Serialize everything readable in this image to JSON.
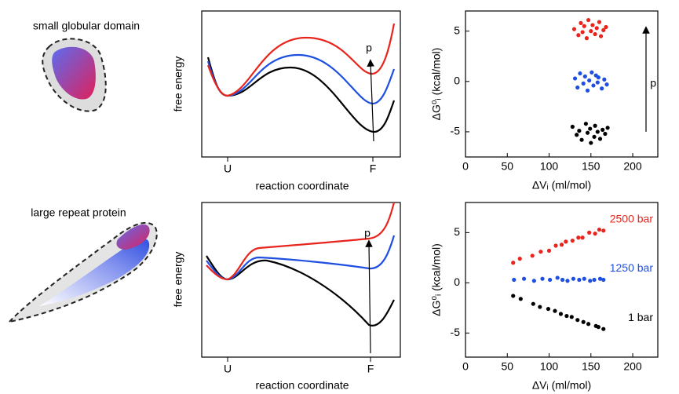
{
  "rows": [
    {
      "label": "small globular domain",
      "landscape": {
        "ylabel": "free energy",
        "xlabel": "reaction coordinate",
        "ticks": [
          "U",
          "F"
        ],
        "arrow": "p"
      }
    },
    {
      "label": "large repeat protein",
      "landscape": {
        "ylabel": "free energy",
        "xlabel": "reaction coordinate",
        "ticks": [
          "U",
          "F"
        ],
        "arrow": "p"
      }
    }
  ],
  "chart_data": [
    {
      "type": "scatter",
      "xlabel": "ΔVᵢ  (ml/mol)",
      "ylabel": "ΔG⁰ᵢ (kcal/mol)",
      "annotation": "p",
      "xlim": [
        0,
        230
      ],
      "ylim": [
        -7.5,
        7
      ],
      "xticks": [
        0,
        50,
        100,
        150,
        200
      ],
      "yticks": [
        -5,
        0,
        5
      ],
      "series": [
        {
          "color": "#e8241c",
          "x": [
            130,
            135,
            138,
            140,
            142,
            145,
            147,
            150,
            152,
            155,
            157,
            160,
            162,
            165,
            168
          ],
          "values": [
            5.2,
            4.6,
            5.8,
            4.9,
            5.5,
            4.3,
            6.1,
            5.0,
            5.6,
            4.7,
            5.3,
            5.9,
            4.5,
            5.1,
            5.4
          ]
        },
        {
          "color": "#1f4fe0",
          "x": [
            131,
            134,
            137,
            141,
            143,
            146,
            148,
            151,
            153,
            156,
            158,
            159,
            163,
            166,
            169
          ],
          "values": [
            0.3,
            -0.6,
            0.8,
            -0.2,
            0.5,
            -0.9,
            0.1,
            0.9,
            -0.4,
            0.6,
            -0.1,
            0.4,
            -0.7,
            0.2,
            -0.3
          ]
        },
        {
          "color": "#000000",
          "x": [
            128,
            133,
            136,
            139,
            144,
            146,
            149,
            150,
            154,
            155,
            158,
            161,
            164,
            167,
            170
          ],
          "values": [
            -4.5,
            -5.3,
            -4.9,
            -5.8,
            -4.2,
            -5.1,
            -4.7,
            -6.1,
            -5.5,
            -4.4,
            -5.0,
            -5.7,
            -4.8,
            -5.2,
            -4.6
          ]
        }
      ]
    },
    {
      "type": "scatter",
      "xlabel": "ΔVᵢ (ml/mol)",
      "ylabel": "ΔG⁰ᵢ (kcal/mol)",
      "xlim": [
        0,
        230
      ],
      "ylim": [
        -7.4,
        8
      ],
      "xticks": [
        0,
        50,
        100,
        150,
        200
      ],
      "yticks": [
        -5,
        0,
        5
      ],
      "series": [
        {
          "name": "2500 bar",
          "color": "#e8241c",
          "x": [
            57,
            65,
            80,
            90,
            100,
            108,
            115,
            120,
            128,
            135,
            140,
            148,
            155,
            160,
            165
          ],
          "values": [
            2.0,
            2.4,
            2.7,
            3.1,
            3.2,
            3.7,
            3.8,
            4.1,
            4.2,
            4.5,
            4.5,
            5.0,
            4.9,
            5.3,
            5.2
          ]
        },
        {
          "name": "1250 bar",
          "color": "#1f4fe0",
          "x": [
            58,
            70,
            82,
            92,
            101,
            110,
            116,
            122,
            129,
            136,
            142,
            149,
            154,
            161,
            165
          ],
          "values": [
            0.3,
            0.4,
            0.2,
            0.4,
            0.3,
            0.5,
            0.3,
            0.2,
            0.4,
            0.3,
            0.4,
            0.2,
            0.3,
            0.4,
            0.3
          ]
        },
        {
          "name": "1 bar",
          "color": "#000000",
          "x": [
            57,
            66,
            81,
            89,
            99,
            107,
            114,
            121,
            127,
            134,
            141,
            147,
            156,
            159,
            165
          ],
          "values": [
            -1.3,
            -1.6,
            -2.1,
            -2.4,
            -2.6,
            -2.8,
            -3.1,
            -3.3,
            -3.4,
            -3.7,
            -3.9,
            -4.1,
            -4.3,
            -4.4,
            -4.6
          ]
        }
      ]
    }
  ]
}
